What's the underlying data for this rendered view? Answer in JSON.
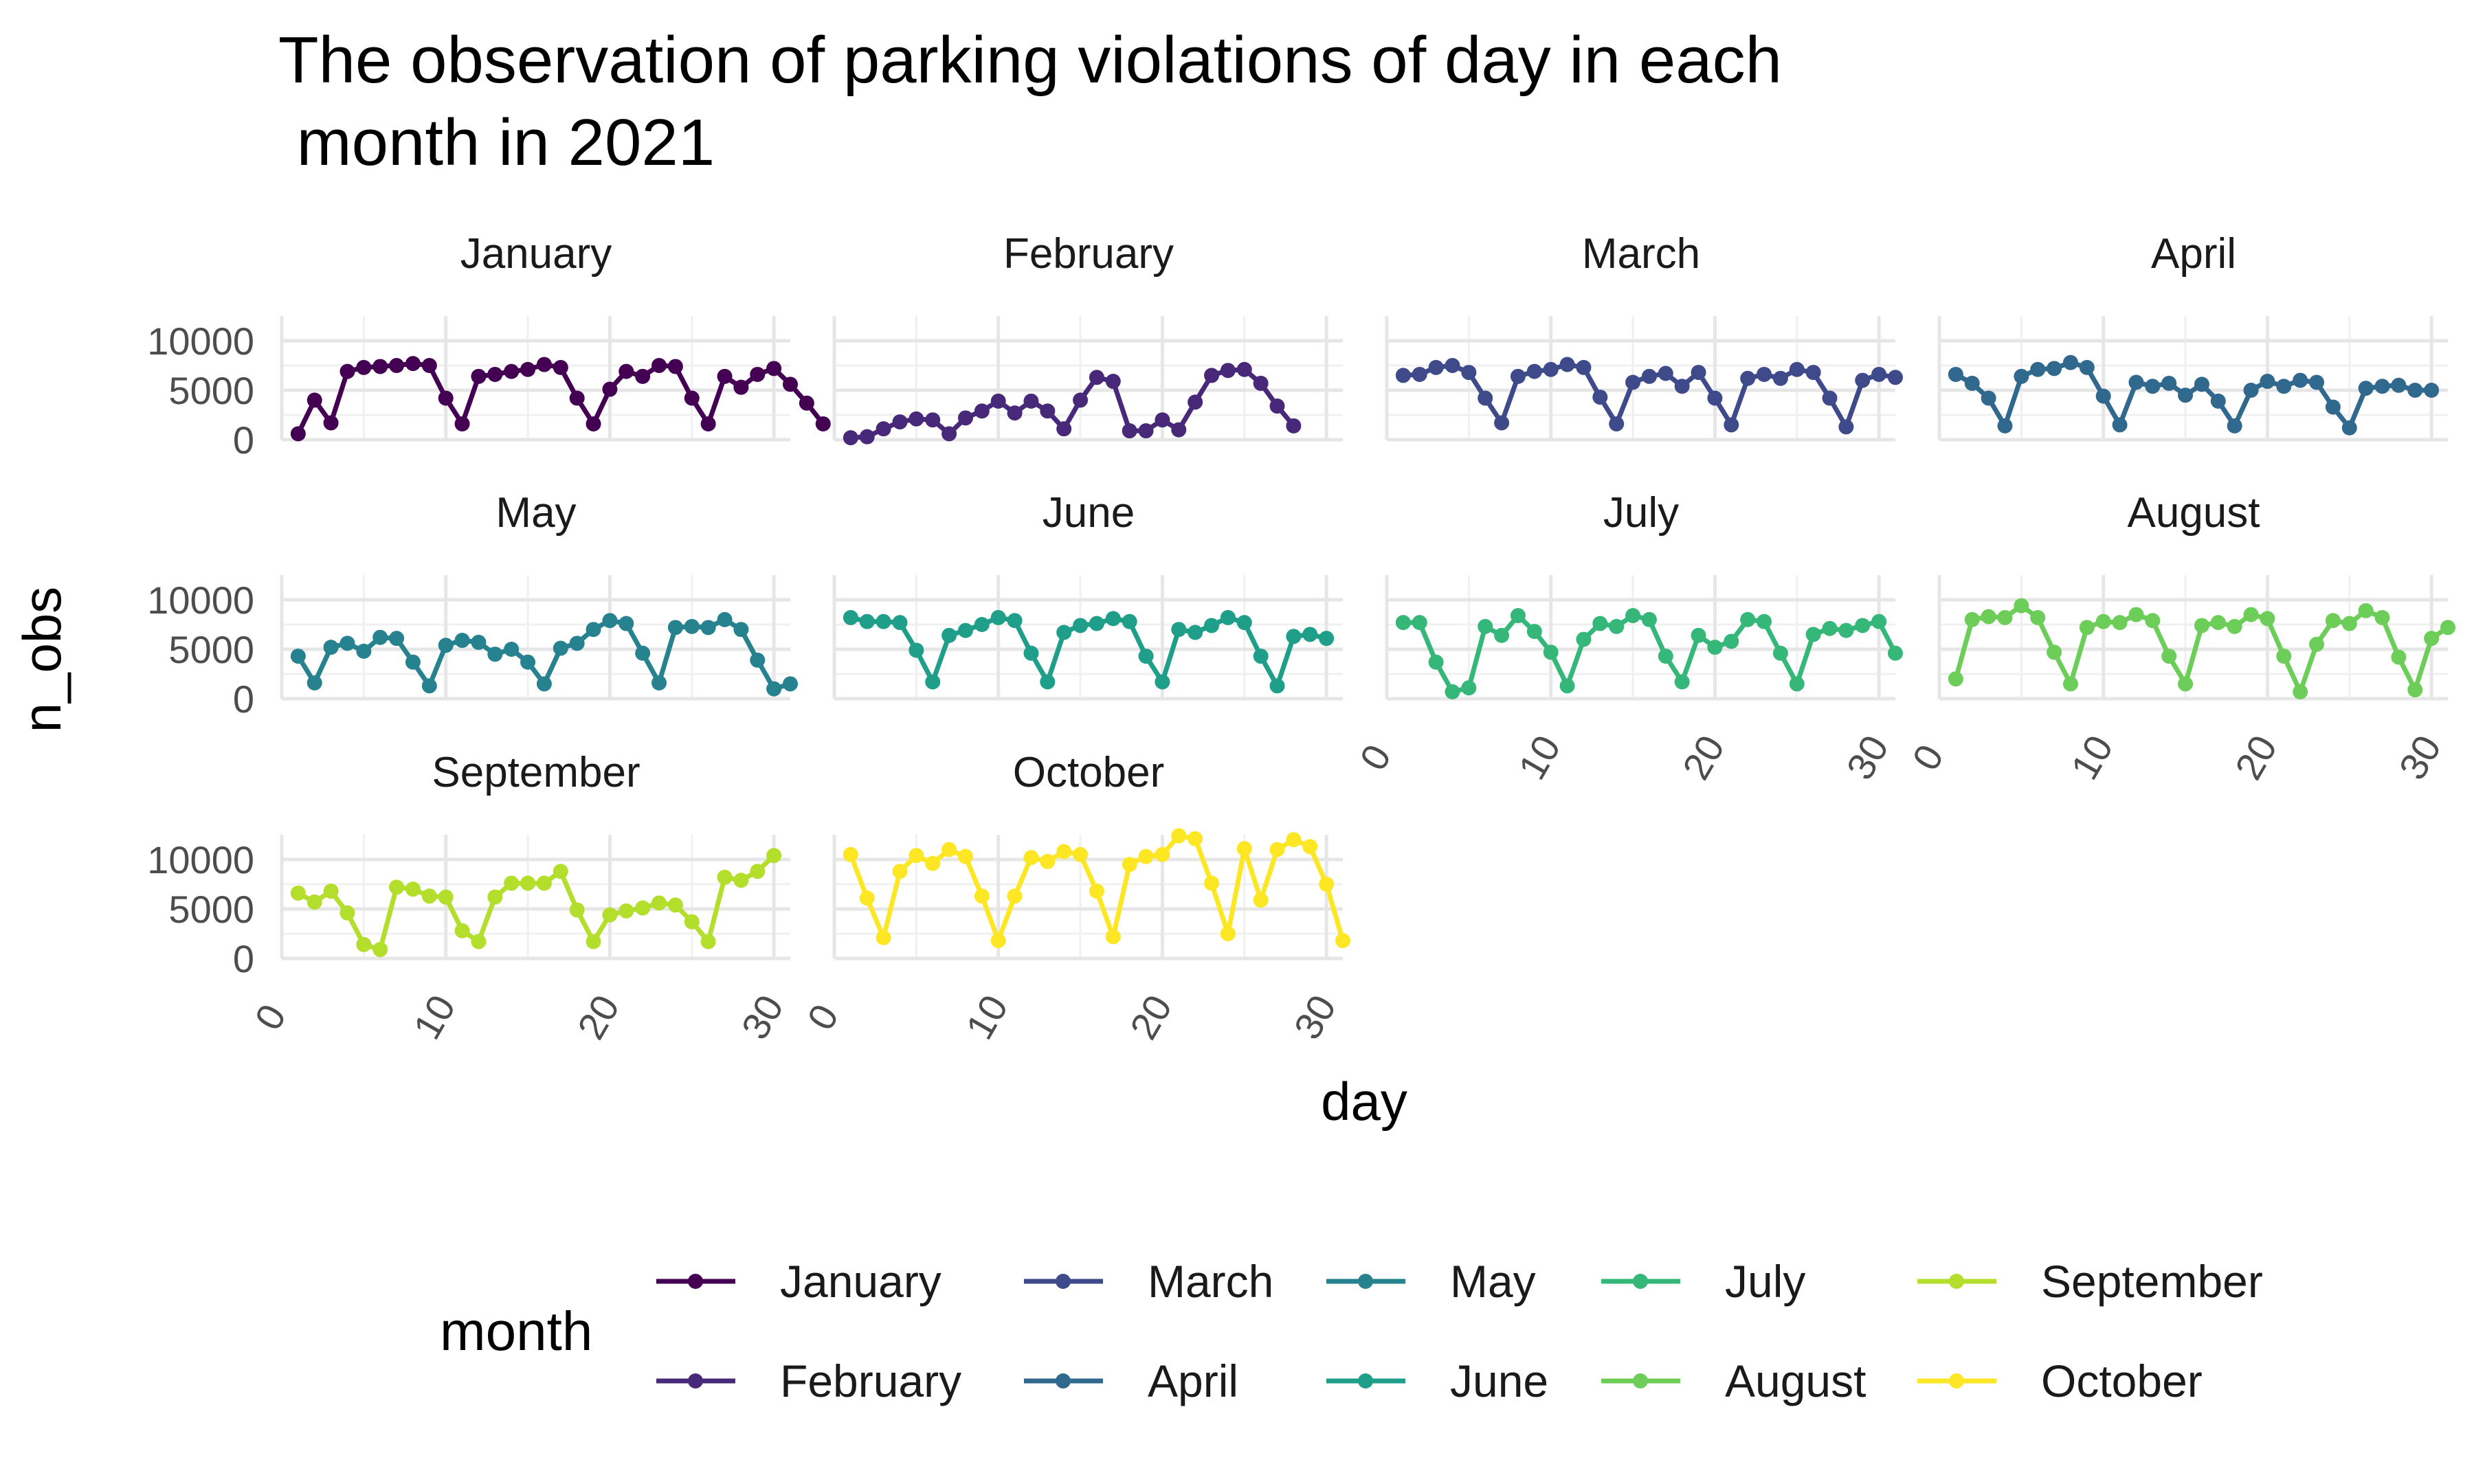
{
  "chart_data": {
    "type": "line",
    "title": "The observation of parking violations of day in each\n month in 2021",
    "xlabel": "day",
    "ylabel": "n_obs",
    "facet_by": "month",
    "x_ticks": [
      0,
      10,
      20,
      30
    ],
    "y_ticks": [
      0,
      5000,
      10000
    ],
    "ylim": [
      0,
      12500
    ],
    "xlim": [
      0,
      31
    ],
    "grid": true,
    "legend": {
      "title": "month",
      "position": "bottom",
      "ncol": 5
    },
    "series": [
      {
        "name": "January",
        "color": "#440154",
        "values": [
          600,
          4000,
          1700,
          6900,
          7300,
          7400,
          7500,
          7700,
          7500,
          4200,
          1600,
          6400,
          6600,
          6900,
          7100,
          7600,
          7300,
          4200,
          1600,
          5100,
          6900,
          6400,
          7500,
          7400,
          4200,
          1600,
          6400,
          5300,
          6600,
          7200,
          5600,
          3700,
          1600
        ]
      },
      {
        "name": "February",
        "color": "#482878",
        "values": [
          200,
          300,
          1100,
          1800,
          2100,
          2000,
          600,
          2200,
          2900,
          3900,
          2700,
          3900,
          2900,
          1100,
          4000,
          6300,
          5900,
          900,
          900,
          2000,
          1000,
          3800,
          6500,
          7000,
          7100,
          5700,
          3400,
          1400
        ]
      },
      {
        "name": "March",
        "color": "#3E4A89",
        "values": [
          6500,
          6600,
          7300,
          7500,
          6800,
          4200,
          1700,
          6400,
          6900,
          7100,
          7600,
          7300,
          4300,
          1600,
          5800,
          6400,
          6700,
          5400,
          6800,
          4200,
          1500,
          6200,
          6600,
          6200,
          7100,
          6800,
          4200,
          1300,
          6000,
          6600,
          6300
        ]
      },
      {
        "name": "April",
        "color": "#31688E",
        "values": [
          6600,
          5700,
          4200,
          1400,
          6400,
          7100,
          7200,
          7800,
          7300,
          4400,
          1500,
          5800,
          5400,
          5700,
          4500,
          5600,
          3900,
          1400,
          5000,
          5900,
          5400,
          6000,
          5800,
          3300,
          1200,
          5200,
          5400,
          5500,
          5000,
          5000
        ]
      },
      {
        "name": "May",
        "color": "#26828E",
        "values": [
          4300,
          1600,
          5200,
          5600,
          4800,
          6200,
          6100,
          3700,
          1300,
          5400,
          5900,
          5700,
          4500,
          5000,
          3700,
          1500,
          5100,
          5600,
          7000,
          7900,
          7600,
          4600,
          1600,
          7200,
          7300,
          7200,
          8000,
          7000,
          3900,
          1000,
          1500
        ]
      },
      {
        "name": "June",
        "color": "#1F9E89",
        "values": [
          8200,
          7800,
          7800,
          7700,
          4900,
          1700,
          6400,
          6900,
          7500,
          8200,
          7900,
          4600,
          1700,
          6700,
          7400,
          7600,
          8100,
          7800,
          4300,
          1700,
          7000,
          6700,
          7400,
          8200,
          7700,
          4300,
          1300,
          6300,
          6500,
          6100
        ]
      },
      {
        "name": "July",
        "color": "#35B779",
        "values": [
          7700,
          7700,
          3700,
          700,
          1100,
          7300,
          6400,
          8400,
          6800,
          4700,
          1300,
          6000,
          7600,
          7300,
          8400,
          8000,
          4300,
          1700,
          6400,
          5200,
          5800,
          8000,
          7800,
          4600,
          1500,
          6500,
          7100,
          6900,
          7400,
          7800,
          4600
        ]
      },
      {
        "name": "August",
        "color": "#6DCD59",
        "values": [
          2000,
          8000,
          8300,
          8200,
          9400,
          8200,
          4700,
          1500,
          7200,
          7800,
          7700,
          8500,
          7900,
          4300,
          1500,
          7400,
          7700,
          7300,
          8500,
          8100,
          4300,
          700,
          5500,
          7900,
          7600,
          8900,
          8200,
          4200,
          900,
          6100,
          7200
        ]
      },
      {
        "name": "September",
        "color": "#B4DE2C",
        "values": [
          6600,
          5700,
          6800,
          4600,
          1400,
          900,
          7200,
          7000,
          6300,
          6200,
          2800,
          1700,
          6200,
          7600,
          7600,
          7600,
          8800,
          4900,
          1700,
          4400,
          4800,
          5100,
          5600,
          5400,
          3700,
          1700,
          8200,
          7900,
          8800,
          10400
        ]
      },
      {
        "name": "October",
        "color": "#FDE725",
        "values": [
          10500,
          6100,
          2100,
          8800,
          10400,
          9600,
          11000,
          10300,
          6300,
          1800,
          6300,
          10200,
          9800,
          10800,
          10500,
          6800,
          2200,
          9500,
          10300,
          10500,
          12400,
          12100,
          7600,
          2500,
          11100,
          5900,
          11000,
          12000,
          11300,
          7500,
          1800
        ]
      }
    ]
  }
}
